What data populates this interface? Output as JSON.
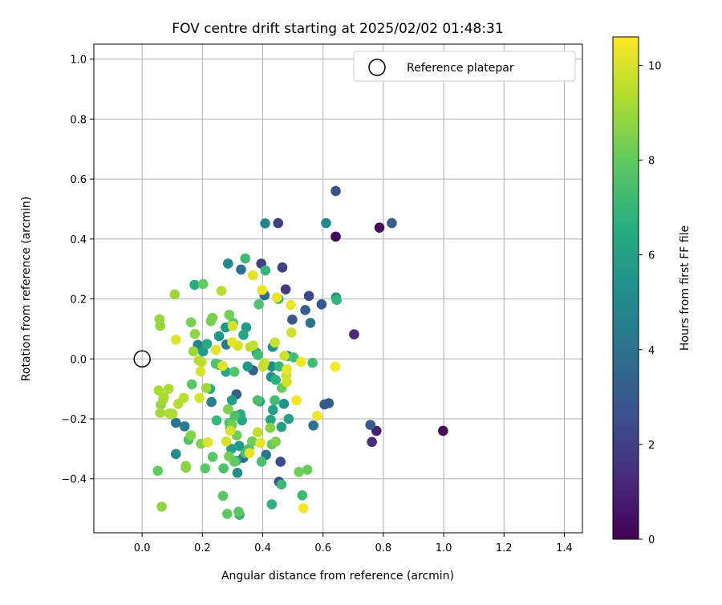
{
  "chart_data": {
    "type": "scatter",
    "title": "FOV centre drift starting at 2025/02/02 01:48:31",
    "xlabel": "Angular distance from reference (arcmin)",
    "ylabel": "Rotation from reference (arcmin)",
    "xlim": [
      -0.16,
      1.46
    ],
    "ylim": [
      -0.58,
      1.05
    ],
    "x_ticks": [
      "0.0",
      "0.2",
      "0.4",
      "0.6",
      "0.8",
      "1.0",
      "1.2",
      "1.4"
    ],
    "x_tick_values": [
      0,
      0.2,
      0.4,
      0.6,
      0.8,
      1.0,
      1.2,
      1.4
    ],
    "y_ticks": [
      "−0.4",
      "−0.2",
      "0.0",
      "0.2",
      "0.4",
      "0.6",
      "0.8",
      "1.0"
    ],
    "y_tick_values": [
      -0.4,
      -0.2,
      0,
      0.2,
      0.4,
      0.6,
      0.8,
      1.0
    ],
    "grid": true,
    "colormap": "viridis",
    "colorbar": {
      "label": "Hours from first FF file",
      "range": [
        0,
        10.6
      ],
      "ticks": [
        "0",
        "2",
        "4",
        "6",
        "8",
        "10"
      ],
      "tick_values": [
        0,
        2,
        4,
        6,
        8,
        10
      ]
    },
    "legend": {
      "position": "top-right",
      "entries": [
        "Reference platepar"
      ]
    },
    "reference_point": {
      "x": 0.0,
      "y": 0.0
    },
    "points": [
      {
        "x": 0.642,
        "y": 0.408,
        "c": 0.2
      },
      {
        "x": 0.787,
        "y": 0.438,
        "c": 0.3
      },
      {
        "x": 0.998,
        "y": -0.24,
        "c": 0.4
      },
      {
        "x": 0.703,
        "y": 0.082,
        "c": 1.2
      },
      {
        "x": 0.777,
        "y": -0.24,
        "c": 1.0
      },
      {
        "x": 0.762,
        "y": -0.277,
        "c": 1.4
      },
      {
        "x": 0.451,
        "y": 0.453,
        "c": 2.0
      },
      {
        "x": 0.395,
        "y": 0.318,
        "c": 2.0
      },
      {
        "x": 0.465,
        "y": 0.305,
        "c": 2.0
      },
      {
        "x": 0.476,
        "y": 0.232,
        "c": 1.8
      },
      {
        "x": 0.553,
        "y": 0.21,
        "c": 2.2
      },
      {
        "x": 0.642,
        "y": 0.56,
        "c": 2.6
      },
      {
        "x": 0.459,
        "y": -0.343,
        "c": 2.4
      },
      {
        "x": 0.454,
        "y": -0.41,
        "c": 2.6
      },
      {
        "x": 0.498,
        "y": 0.131,
        "c": 2.8
      },
      {
        "x": 0.757,
        "y": -0.22,
        "c": 3.0
      },
      {
        "x": 0.828,
        "y": 0.453,
        "c": 3.2
      },
      {
        "x": 0.595,
        "y": 0.182,
        "c": 3.0
      },
      {
        "x": 0.541,
        "y": 0.163,
        "c": 3.2
      },
      {
        "x": 0.619,
        "y": -0.148,
        "c": 3.2
      },
      {
        "x": 0.605,
        "y": -0.152,
        "c": 3.0
      },
      {
        "x": 0.368,
        "y": -0.038,
        "c": 3.1
      },
      {
        "x": 0.313,
        "y": -0.118,
        "c": 3.3
      },
      {
        "x": 0.335,
        "y": -0.33,
        "c": 3.4
      },
      {
        "x": 0.328,
        "y": 0.298,
        "c": 3.8
      },
      {
        "x": 0.406,
        "y": 0.212,
        "c": 3.6
      },
      {
        "x": 0.558,
        "y": 0.12,
        "c": 4.0
      },
      {
        "x": 0.568,
        "y": -0.222,
        "c": 4.0
      },
      {
        "x": 0.411,
        "y": -0.32,
        "c": 4.2
      },
      {
        "x": 0.112,
        "y": -0.213,
        "c": 4.1
      },
      {
        "x": 0.141,
        "y": -0.225,
        "c": 4.3
      },
      {
        "x": 0.23,
        "y": -0.144,
        "c": 4.5
      },
      {
        "x": 0.185,
        "y": 0.047,
        "c": 4.6
      },
      {
        "x": 0.279,
        "y": 0.048,
        "c": 4.4
      },
      {
        "x": 0.408,
        "y": 0.452,
        "c": 4.8
      },
      {
        "x": 0.61,
        "y": 0.453,
        "c": 4.9
      },
      {
        "x": 0.643,
        "y": 0.205,
        "c": 5.0
      },
      {
        "x": 0.285,
        "y": 0.318,
        "c": 5.0
      },
      {
        "x": 0.112,
        "y": -0.317,
        "c": 5.1
      },
      {
        "x": 0.316,
        "y": -0.38,
        "c": 5.2
      },
      {
        "x": 0.43,
        "y": -0.025,
        "c": 5.0
      },
      {
        "x": 0.483,
        "y": 0.01,
        "c": 5.2
      },
      {
        "x": 0.428,
        "y": -0.06,
        "c": 5.3
      },
      {
        "x": 0.47,
        "y": -0.15,
        "c": 5.4
      },
      {
        "x": 0.433,
        "y": 0.04,
        "c": 5.3
      },
      {
        "x": 0.292,
        "y": -0.233,
        "c": 5.4
      },
      {
        "x": 0.255,
        "y": 0.076,
        "c": 5.5
      },
      {
        "x": 0.277,
        "y": 0.105,
        "c": 5.5
      },
      {
        "x": 0.35,
        "y": -0.025,
        "c": 5.6
      },
      {
        "x": 0.322,
        "y": -0.29,
        "c": 5.6
      },
      {
        "x": 0.38,
        "y": 0.02,
        "c": 5.6
      },
      {
        "x": 0.202,
        "y": 0.025,
        "c": 5.7
      },
      {
        "x": 0.345,
        "y": 0.105,
        "c": 5.8
      },
      {
        "x": 0.296,
        "y": -0.3,
        "c": 5.8
      },
      {
        "x": 0.298,
        "y": -0.138,
        "c": 5.9
      },
      {
        "x": 0.434,
        "y": -0.17,
        "c": 5.9
      },
      {
        "x": 0.462,
        "y": -0.227,
        "c": 6.0
      },
      {
        "x": 0.486,
        "y": -0.2,
        "c": 6.0
      },
      {
        "x": 0.39,
        "y": -0.142,
        "c": 6.1
      },
      {
        "x": 0.426,
        "y": -0.203,
        "c": 6.1
      },
      {
        "x": 0.312,
        "y": -0.34,
        "c": 6.2
      },
      {
        "x": 0.331,
        "y": -0.205,
        "c": 6.2
      },
      {
        "x": 0.278,
        "y": -0.043,
        "c": 6.3
      },
      {
        "x": 0.336,
        "y": 0.08,
        "c": 6.3
      },
      {
        "x": 0.215,
        "y": 0.05,
        "c": 6.4
      },
      {
        "x": 0.256,
        "y": -0.02,
        "c": 6.4
      },
      {
        "x": 0.225,
        "y": -0.1,
        "c": 6.5
      },
      {
        "x": 0.174,
        "y": 0.247,
        "c": 6.6
      },
      {
        "x": 0.326,
        "y": -0.185,
        "c": 6.6
      },
      {
        "x": 0.443,
        "y": -0.07,
        "c": 6.7
      },
      {
        "x": 0.452,
        "y": 0.2,
        "c": 6.7
      },
      {
        "x": 0.43,
        "y": -0.485,
        "c": 6.8
      },
      {
        "x": 0.323,
        "y": -0.52,
        "c": 6.8
      },
      {
        "x": 0.645,
        "y": 0.197,
        "c": 6.9
      },
      {
        "x": 0.409,
        "y": 0.295,
        "c": 6.9
      },
      {
        "x": 0.247,
        "y": -0.205,
        "c": 7.0
      },
      {
        "x": 0.342,
        "y": 0.335,
        "c": 7.2
      },
      {
        "x": 0.454,
        "y": -0.025,
        "c": 7.0
      },
      {
        "x": 0.462,
        "y": -0.419,
        "c": 7.1
      },
      {
        "x": 0.531,
        "y": -0.455,
        "c": 7.2
      },
      {
        "x": 0.384,
        "y": 0.013,
        "c": 7.2
      },
      {
        "x": 0.502,
        "y": 0.005,
        "c": 7.3
      },
      {
        "x": 0.565,
        "y": -0.013,
        "c": 7.3
      },
      {
        "x": 0.44,
        "y": -0.138,
        "c": 7.3
      },
      {
        "x": 0.383,
        "y": -0.138,
        "c": 7.4
      },
      {
        "x": 0.396,
        "y": -0.343,
        "c": 7.4
      },
      {
        "x": 0.342,
        "y": -0.315,
        "c": 7.4
      },
      {
        "x": 0.354,
        "y": -0.3,
        "c": 7.5
      },
      {
        "x": 0.387,
        "y": 0.182,
        "c": 7.5
      },
      {
        "x": 0.27,
        "y": -0.365,
        "c": 7.5
      },
      {
        "x": 0.307,
        "y": -0.19,
        "c": 7.5
      },
      {
        "x": 0.289,
        "y": -0.213,
        "c": 7.6
      },
      {
        "x": 0.154,
        "y": -0.27,
        "c": 7.6
      },
      {
        "x": 0.244,
        "y": -0.016,
        "c": 7.6
      },
      {
        "x": 0.306,
        "y": -0.043,
        "c": 7.7
      },
      {
        "x": 0.302,
        "y": 0.12,
        "c": 7.7
      },
      {
        "x": 0.209,
        "y": -0.365,
        "c": 7.8
      },
      {
        "x": 0.165,
        "y": -0.085,
        "c": 7.8
      },
      {
        "x": 0.234,
        "y": -0.327,
        "c": 7.8
      },
      {
        "x": 0.282,
        "y": -0.517,
        "c": 7.9
      },
      {
        "x": 0.32,
        "y": -0.51,
        "c": 7.9
      },
      {
        "x": 0.268,
        "y": -0.457,
        "c": 7.9
      },
      {
        "x": 0.202,
        "y": 0.25,
        "c": 8.0
      },
      {
        "x": 0.306,
        "y": -0.343,
        "c": 8.0
      },
      {
        "x": 0.43,
        "y": -0.285,
        "c": 8.0
      },
      {
        "x": 0.052,
        "y": -0.373,
        "c": 8.0
      },
      {
        "x": 0.463,
        "y": -0.097,
        "c": 8.1
      },
      {
        "x": 0.548,
        "y": -0.37,
        "c": 8.1
      },
      {
        "x": 0.52,
        "y": -0.377,
        "c": 8.2
      },
      {
        "x": 0.314,
        "y": -0.255,
        "c": 8.2
      },
      {
        "x": 0.365,
        "y": -0.275,
        "c": 8.2
      },
      {
        "x": 0.298,
        "y": -0.22,
        "c": 8.3
      },
      {
        "x": 0.289,
        "y": 0.147,
        "c": 8.3
      },
      {
        "x": 0.288,
        "y": -0.325,
        "c": 8.3
      },
      {
        "x": 0.162,
        "y": 0.122,
        "c": 8.4
      },
      {
        "x": 0.233,
        "y": 0.137,
        "c": 8.4
      },
      {
        "x": 0.228,
        "y": 0.126,
        "c": 8.4
      },
      {
        "x": 0.285,
        "y": -0.168,
        "c": 8.5
      },
      {
        "x": 0.443,
        "y": -0.276,
        "c": 8.5
      },
      {
        "x": 0.425,
        "y": -0.23,
        "c": 8.6
      },
      {
        "x": 0.162,
        "y": -0.255,
        "c": 8.6
      },
      {
        "x": 0.195,
        "y": -0.283,
        "c": 8.6
      },
      {
        "x": 0.145,
        "y": -0.363,
        "c": 8.7
      },
      {
        "x": 0.145,
        "y": -0.357,
        "c": 8.7
      },
      {
        "x": 0.065,
        "y": -0.493,
        "c": 8.8
      },
      {
        "x": 0.175,
        "y": 0.083,
        "c": 8.8
      },
      {
        "x": 0.062,
        "y": -0.153,
        "c": 8.8
      },
      {
        "x": 0.06,
        "y": 0.11,
        "c": 8.9
      },
      {
        "x": 0.058,
        "y": 0.132,
        "c": 8.9
      },
      {
        "x": 0.108,
        "y": 0.215,
        "c": 9.0
      },
      {
        "x": 0.213,
        "y": -0.097,
        "c": 9.0
      },
      {
        "x": 0.17,
        "y": 0.025,
        "c": 9.0
      },
      {
        "x": 0.06,
        "y": -0.18,
        "c": 9.1
      },
      {
        "x": 0.07,
        "y": -0.135,
        "c": 9.1
      },
      {
        "x": 0.072,
        "y": -0.127,
        "c": 9.2
      },
      {
        "x": 0.055,
        "y": -0.105,
        "c": 9.2
      },
      {
        "x": 0.088,
        "y": -0.1,
        "c": 9.2
      },
      {
        "x": 0.09,
        "y": -0.182,
        "c": 9.3
      },
      {
        "x": 0.101,
        "y": -0.183,
        "c": 9.3
      },
      {
        "x": 0.12,
        "y": -0.15,
        "c": 9.4
      },
      {
        "x": 0.138,
        "y": -0.13,
        "c": 9.4
      },
      {
        "x": 0.188,
        "y": -0.005,
        "c": 9.4
      },
      {
        "x": 0.197,
        "y": -0.01,
        "c": 9.5
      },
      {
        "x": 0.263,
        "y": 0.227,
        "c": 9.5
      },
      {
        "x": 0.383,
        "y": -0.245,
        "c": 9.6
      },
      {
        "x": 0.358,
        "y": 0.04,
        "c": 9.6
      },
      {
        "x": 0.368,
        "y": 0.045,
        "c": 9.6
      },
      {
        "x": 0.401,
        "y": -0.025,
        "c": 9.7
      },
      {
        "x": 0.405,
        "y": -0.014,
        "c": 9.7
      },
      {
        "x": 0.44,
        "y": 0.055,
        "c": 9.7
      },
      {
        "x": 0.472,
        "y": 0.01,
        "c": 9.8
      },
      {
        "x": 0.495,
        "y": 0.088,
        "c": 9.8
      },
      {
        "x": 0.478,
        "y": -0.055,
        "c": 9.8
      },
      {
        "x": 0.48,
        "y": -0.077,
        "c": 9.9
      },
      {
        "x": 0.318,
        "y": 0.044,
        "c": 9.9
      },
      {
        "x": 0.3,
        "y": 0.11,
        "c": 9.9
      },
      {
        "x": 0.279,
        "y": -0.275,
        "c": 9.9
      },
      {
        "x": 0.292,
        "y": -0.24,
        "c": 10.0
      },
      {
        "x": 0.19,
        "y": -0.13,
        "c": 10.0
      },
      {
        "x": 0.194,
        "y": -0.042,
        "c": 10.0
      },
      {
        "x": 0.112,
        "y": 0.064,
        "c": 10.1
      },
      {
        "x": 0.218,
        "y": -0.278,
        "c": 10.1
      },
      {
        "x": 0.245,
        "y": 0.03,
        "c": 10.1
      },
      {
        "x": 0.267,
        "y": -0.023,
        "c": 10.1
      },
      {
        "x": 0.299,
        "y": 0.056,
        "c": 10.2
      },
      {
        "x": 0.356,
        "y": -0.314,
        "c": 10.2
      },
      {
        "x": 0.392,
        "y": -0.28,
        "c": 10.2
      },
      {
        "x": 0.367,
        "y": 0.279,
        "c": 10.2
      },
      {
        "x": 0.398,
        "y": 0.23,
        "c": 10.3
      },
      {
        "x": 0.447,
        "y": 0.205,
        "c": 10.3
      },
      {
        "x": 0.493,
        "y": 0.18,
        "c": 10.3
      },
      {
        "x": 0.48,
        "y": -0.035,
        "c": 10.3
      },
      {
        "x": 0.527,
        "y": -0.01,
        "c": 10.4
      },
      {
        "x": 0.512,
        "y": -0.138,
        "c": 10.4
      },
      {
        "x": 0.58,
        "y": -0.19,
        "c": 10.4
      },
      {
        "x": 0.64,
        "y": -0.026,
        "c": 10.5
      },
      {
        "x": 0.535,
        "y": -0.498,
        "c": 10.5
      }
    ]
  }
}
